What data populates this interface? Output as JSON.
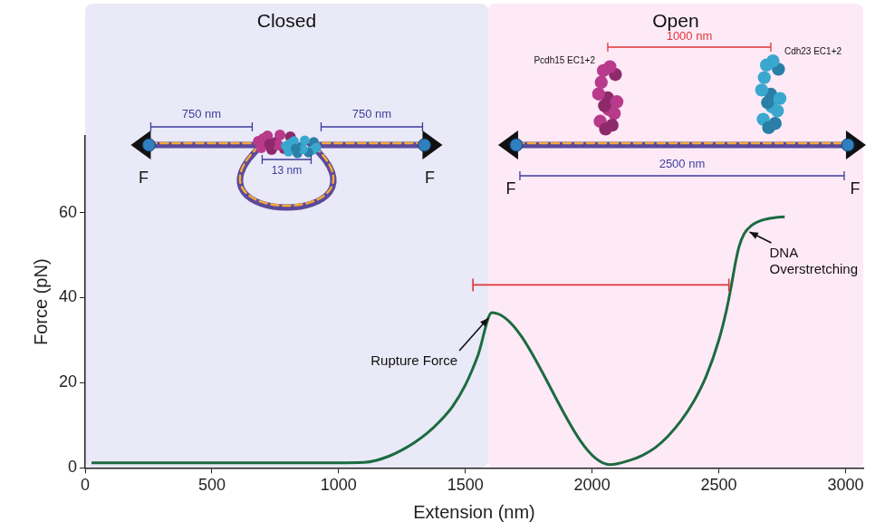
{
  "chart_data": {
    "type": "line",
    "x_label": "Extension (nm)",
    "y_label": "Force (pN)",
    "x": [
      25,
      200,
      400,
      600,
      800,
      1000,
      1100,
      1150,
      1200,
      1250,
      1300,
      1350,
      1400,
      1450,
      1500,
      1550,
      1605,
      2070,
      2100,
      2150,
      2200,
      2250,
      2300,
      2350,
      2400,
      2450,
      2500,
      2530,
      2550,
      2565,
      2580,
      2600,
      2630,
      2670,
      2720,
      2760
    ],
    "values": [
      1.2,
      1.2,
      1.2,
      1.2,
      1.2,
      1.2,
      1.3,
      1.8,
      2.8,
      4.2,
      6,
      8.2,
      11,
      14.5,
      19.5,
      26.5,
      36.5,
      0.8,
      1,
      1.8,
      3,
      4.8,
      7.5,
      11,
      15.5,
      21.5,
      30,
      37,
      43,
      48,
      52,
      55,
      57,
      58.2,
      58.8,
      59
    ],
    "color": "#1c6b40",
    "xlim": [
      0,
      3070
    ],
    "xticks": [
      0,
      500,
      1000,
      1500,
      2000,
      2500,
      3000
    ],
    "ylim": [
      0,
      78
    ],
    "yticks": [
      0,
      20,
      40,
      60
    ],
    "grid": false,
    "regions": [
      {
        "label": "Closed",
        "x": [
          0,
          1590
        ],
        "color": "#e9e9f7"
      },
      {
        "label": "Open",
        "x": [
          1590,
          3070
        ],
        "color": "#fdeaf6"
      }
    ],
    "annotations": [
      {
        "text": "Rupture Force",
        "x": 1605,
        "y": 36.5
      },
      {
        "text": "DNA Overstretching",
        "x": 2600,
        "y": 55
      }
    ],
    "bracket": {
      "x": [
        1530,
        2540
      ],
      "y": 43,
      "color": "#e0353a"
    },
    "insets": {
      "closed": {
        "left_length": "750 nm",
        "right_length": "750 nm",
        "gap": "13 nm",
        "force": "F"
      },
      "open": {
        "separation": "1000 nm",
        "length": "2500 nm",
        "left_protein": "Pcdh15 EC1+2",
        "right_protein": "Cdh23 EC1+2",
        "force": "F"
      }
    }
  }
}
